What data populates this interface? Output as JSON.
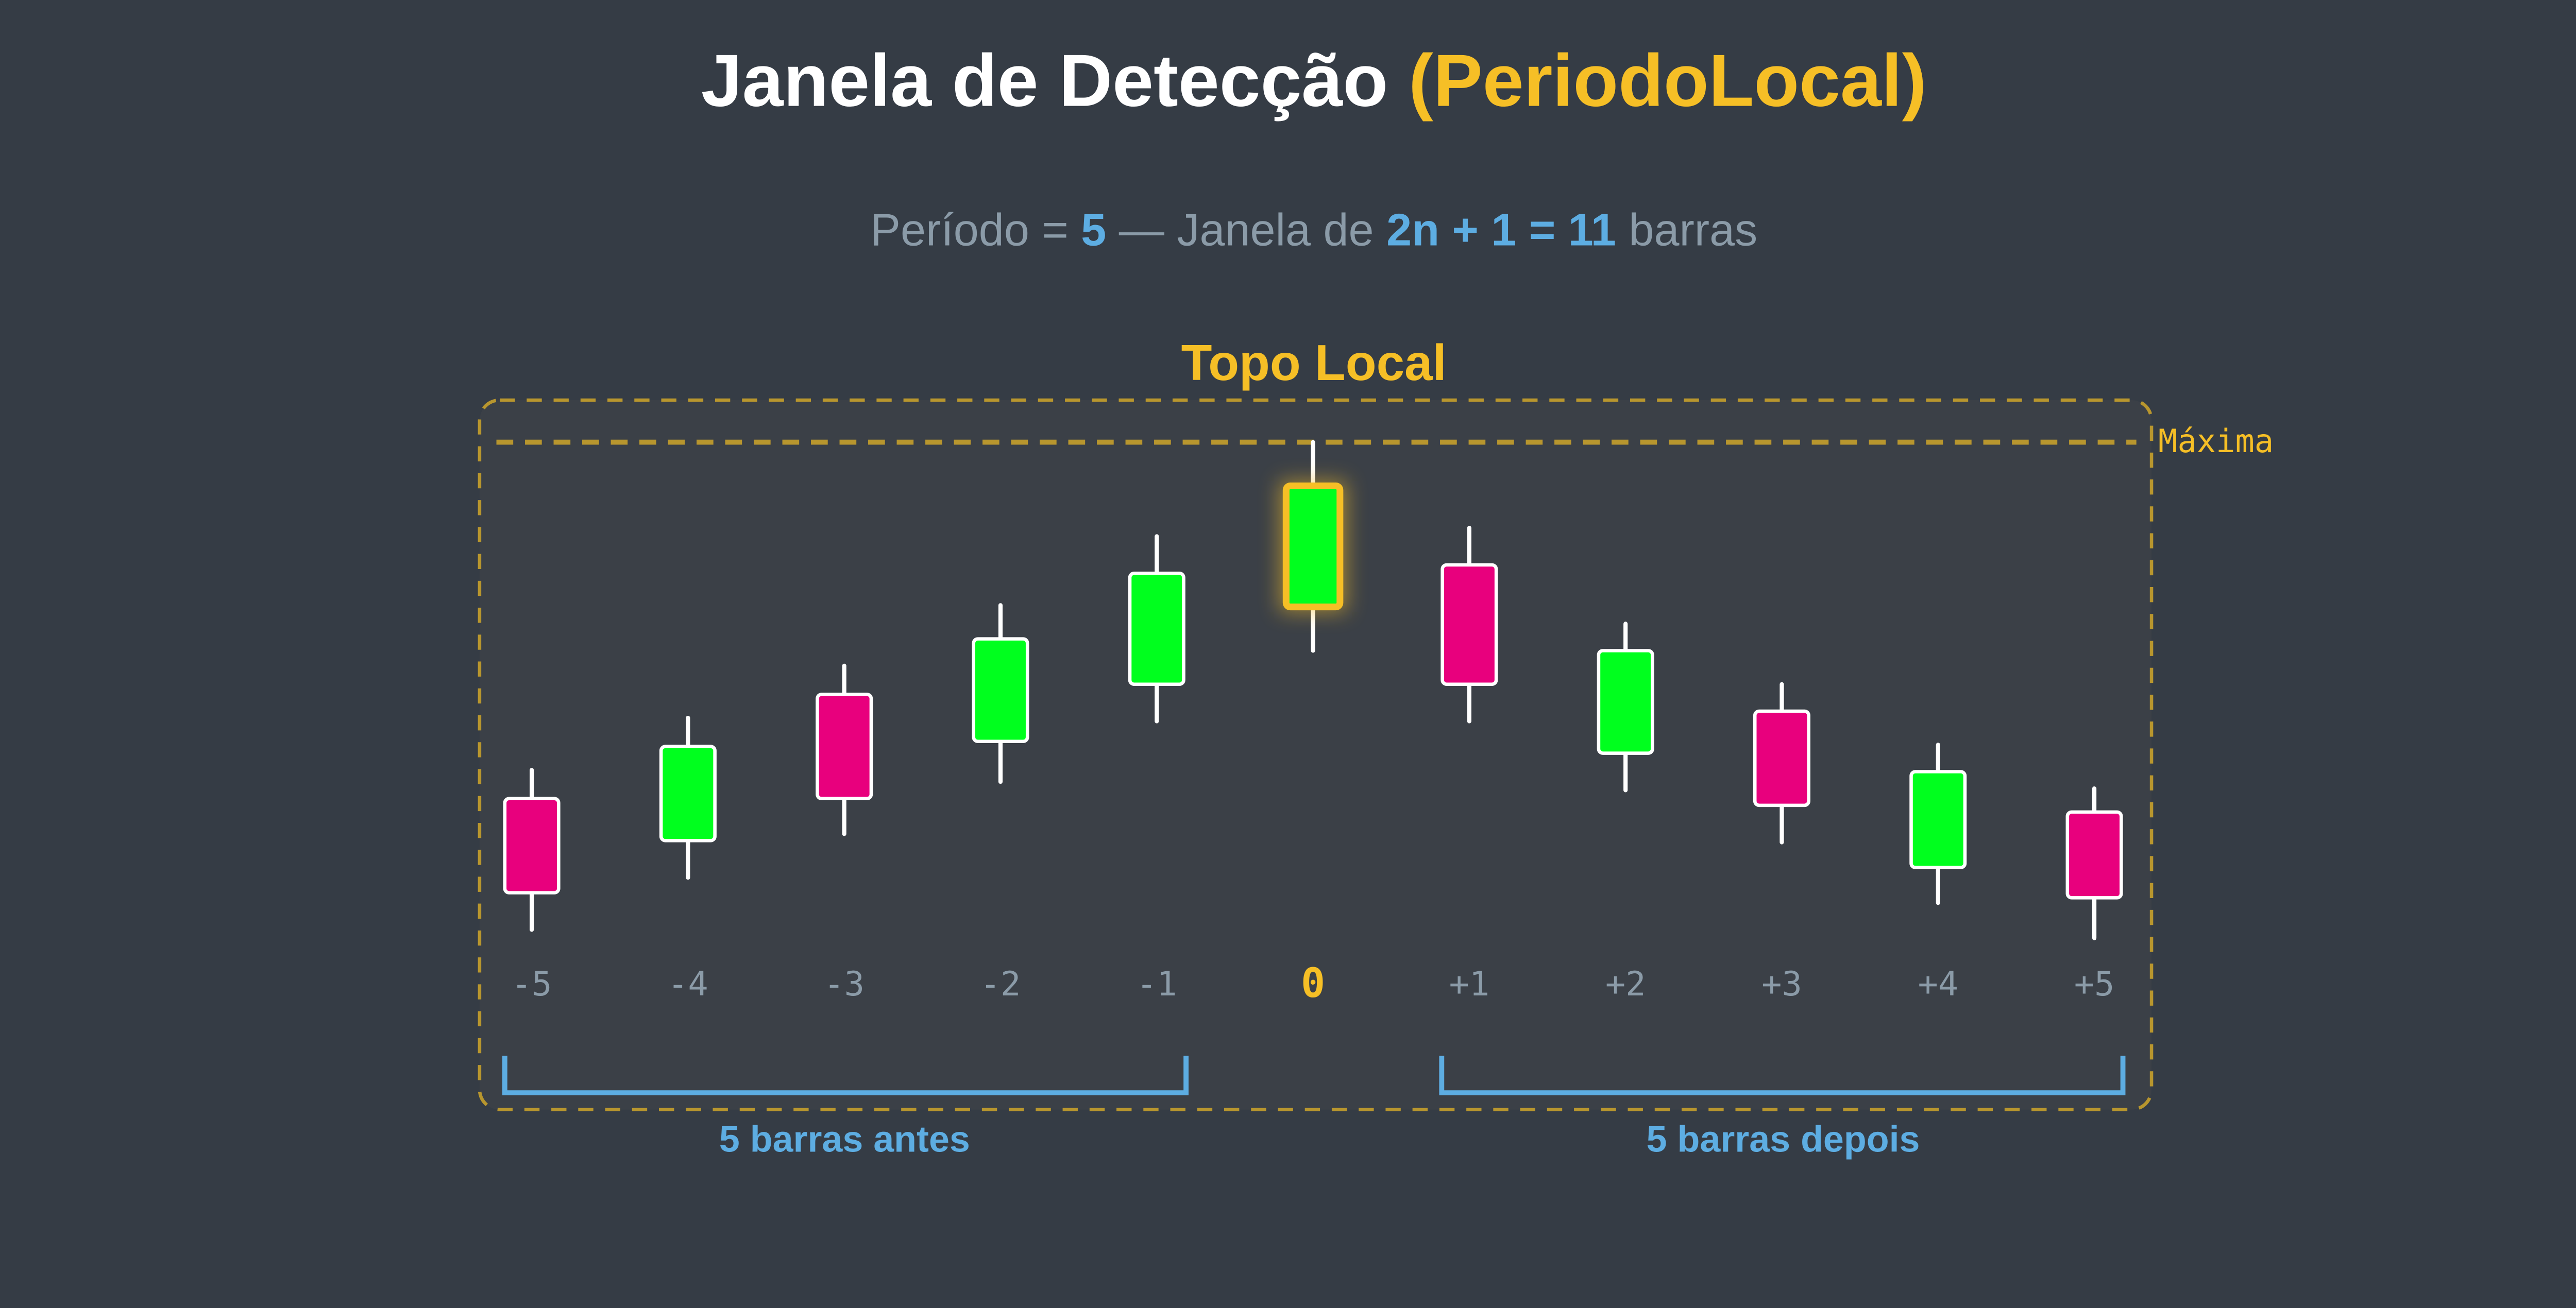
{
  "title": {
    "main": "Janela de Detecção",
    "highlight": "(PeriodoLocal)"
  },
  "subtitle": {
    "p1": "Período = ",
    "period": "5",
    "p2": " — Janela de ",
    "formula": "2n + 1 = 11",
    "p3": " barras"
  },
  "box_label": "Topo Local",
  "max_label": "Máxima",
  "candles": [
    {
      "label": "-5",
      "direction": "bear"
    },
    {
      "label": "-4",
      "direction": "bull"
    },
    {
      "label": "-3",
      "direction": "bear"
    },
    {
      "label": "-2",
      "direction": "bull"
    },
    {
      "label": "-1",
      "direction": "bull"
    },
    {
      "label": "0",
      "direction": "bull",
      "highlight": true
    },
    {
      "label": "+1",
      "direction": "bear"
    },
    {
      "label": "+2",
      "direction": "bull"
    },
    {
      "label": "+3",
      "direction": "bear"
    },
    {
      "label": "+4",
      "direction": "bull"
    },
    {
      "label": "+5",
      "direction": "bear"
    }
  ],
  "brackets": {
    "before": "5 barras antes",
    "after": "5 barras depois"
  },
  "colors": {
    "bull": "#00ff1e",
    "bear": "#e8007d",
    "accent": "#f6bf26",
    "blue": "#5dade2",
    "dash": "#b8962e",
    "background": "#353c45"
  }
}
